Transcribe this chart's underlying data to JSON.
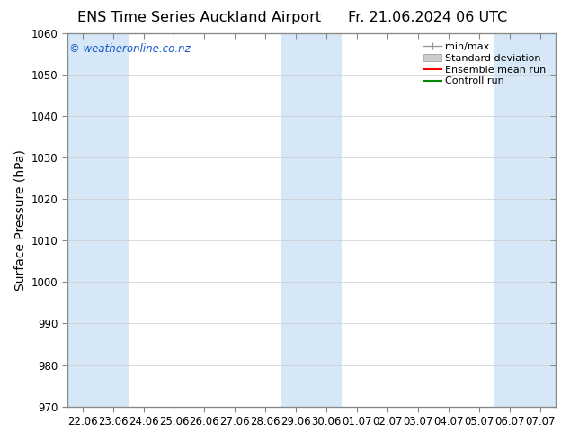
{
  "title_left": "ENS Time Series Auckland Airport",
  "title_right": "Fr. 21.06.2024 06 UTC",
  "ylabel": "Surface Pressure (hPa)",
  "ylim": [
    970,
    1060
  ],
  "yticks": [
    970,
    980,
    990,
    1000,
    1010,
    1020,
    1030,
    1040,
    1050,
    1060
  ],
  "xtick_labels": [
    "22.06",
    "23.06",
    "24.06",
    "25.06",
    "26.06",
    "27.06",
    "28.06",
    "29.06",
    "30.06",
    "01.07",
    "02.07",
    "03.07",
    "04.07",
    "05.07",
    "06.07",
    "07.07"
  ],
  "watermark": "© weatheronline.co.nz",
  "watermark_color": "#1155cc",
  "background_color": "#ffffff",
  "plot_bg_color": "#ffffff",
  "shaded_col_color": "#d6e8f7",
  "band_ranges": [
    [
      0,
      1
    ],
    [
      7,
      8
    ],
    [
      14,
      15
    ]
  ],
  "legend_entries": [
    "min/max",
    "Standard deviation",
    "Ensemble mean run",
    "Controll run"
  ],
  "minmax_color": "#999999",
  "stddev_color": "#cccccc",
  "ensemble_color": "#ff0000",
  "control_color": "#008800",
  "title_fontsize": 11.5,
  "ylabel_fontsize": 10,
  "tick_fontsize": 8.5,
  "legend_fontsize": 8,
  "watermark_fontsize": 8.5,
  "figure_bg": "#ffffff",
  "grid_color": "#cccccc",
  "spine_color": "#888888"
}
